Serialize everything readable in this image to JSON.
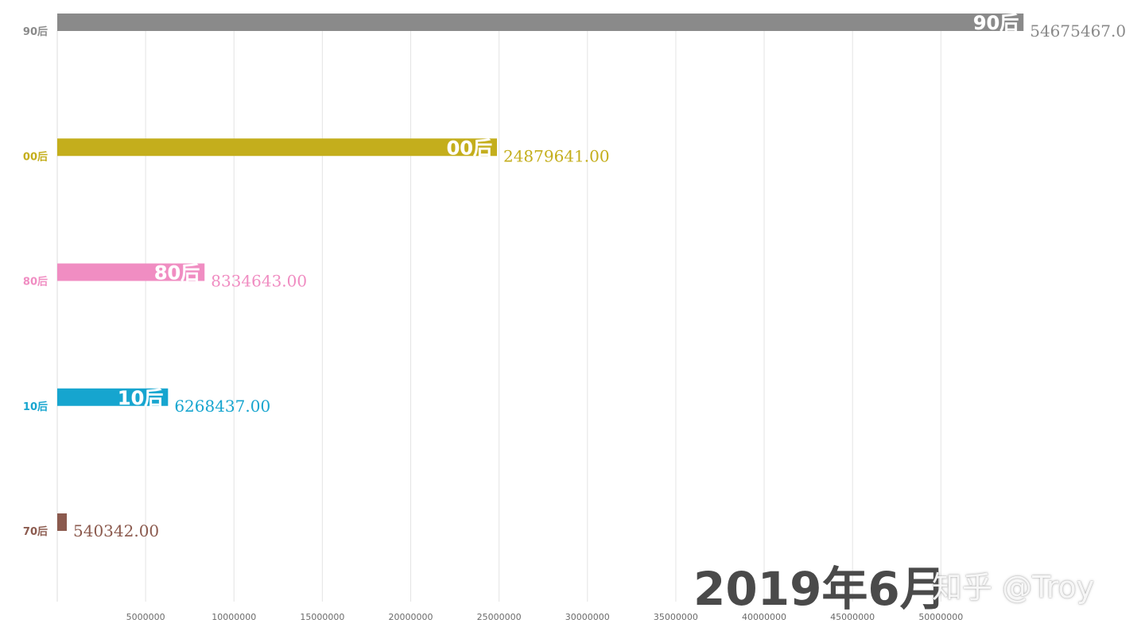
{
  "chart_data": {
    "type": "bar",
    "orientation": "horizontal",
    "categories": [
      "90后",
      "00后",
      "80后",
      "10后",
      "70后"
    ],
    "values": [
      54675467.0,
      24879641.0,
      8334643.0,
      6268437.0,
      540342.0
    ],
    "value_labels": [
      "54675467.0",
      "24879641.00",
      "8334643.00",
      "6268437.00",
      "540342.00"
    ],
    "inner_labels": [
      "90后",
      "00后",
      "80后",
      "10后",
      ""
    ],
    "colors": [
      "#8a8a8a",
      "#c4ae1c",
      "#f08dc2",
      "#16a5cf",
      "#8b5a4e"
    ],
    "xlim": [
      0,
      54800000
    ],
    "x_ticks": [
      5000000,
      10000000,
      15000000,
      20000000,
      25000000,
      30000000,
      35000000,
      40000000,
      45000000,
      50000000
    ],
    "x_tick_labels": [
      "5000000",
      "10000000",
      "15000000",
      "20000000",
      "25000000",
      "30000000",
      "35000000",
      "40000000",
      "45000000",
      "50000000"
    ],
    "grid": "vertical",
    "legend": "none",
    "title": "",
    "xlabel": "",
    "ylabel": ""
  },
  "period_label": "2019年6月",
  "watermark": "知乎 @Troy"
}
